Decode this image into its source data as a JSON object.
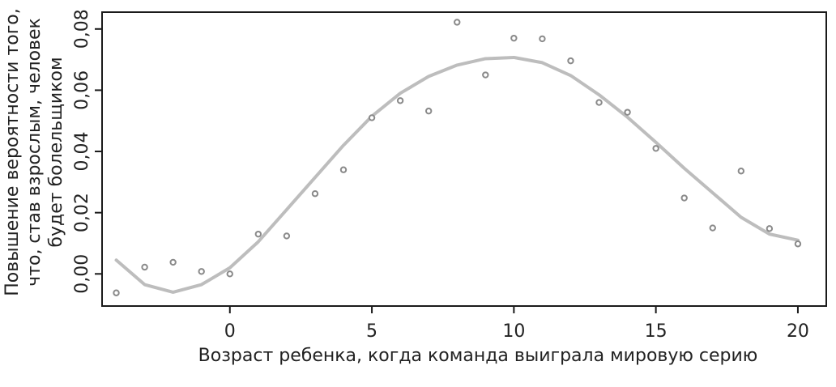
{
  "chart_data": {
    "type": "scatter",
    "title": "",
    "xlabel": "Возраст ребенка, когда команда выиграла мировую серию",
    "ylabel_lines": [
      "Повышение вероятности того,",
      "что, став взрослым, человек",
      "будет болельщиком"
    ],
    "xlim": [
      -4.5,
      21.0
    ],
    "ylim": [
      -0.0105,
      0.0855
    ],
    "xticks": [
      0,
      5,
      10,
      15,
      20
    ],
    "xtick_labels": [
      "0",
      "5",
      "10",
      "15",
      "20"
    ],
    "yticks": [
      0.0,
      0.02,
      0.04,
      0.06,
      0.08
    ],
    "ytick_labels": [
      "0,00",
      "0,02",
      "0,04",
      "0,06",
      "0,08"
    ],
    "grid": false,
    "series": [
      {
        "kind": "points",
        "color": "#8a8a8a",
        "x": [
          -4,
          -3,
          -2,
          -1,
          0,
          1,
          2,
          3,
          4,
          5,
          6,
          7,
          8,
          9,
          10,
          11,
          12,
          13,
          14,
          15,
          16,
          17,
          18,
          19,
          20
        ],
        "y": [
          -0.0062,
          0.0022,
          0.0038,
          0.0008,
          0.0,
          0.013,
          0.0124,
          0.0262,
          0.034,
          0.051,
          0.0566,
          0.0532,
          0.0822,
          0.065,
          0.077,
          0.0768,
          0.0696,
          0.056,
          0.0528,
          0.041,
          0.0248,
          0.015,
          0.0336,
          0.0148,
          0.0098
        ]
      },
      {
        "kind": "smooth-line",
        "color": "#bdbdbd",
        "x": [
          -4,
          -3,
          -2,
          -1,
          0,
          1,
          2,
          3,
          4,
          5,
          6,
          7,
          8,
          9,
          10,
          11,
          12,
          13,
          14,
          15,
          16,
          17,
          18,
          19,
          20
        ],
        "y": [
          0.0045,
          -0.0035,
          -0.006,
          -0.0035,
          0.002,
          0.0105,
          0.021,
          0.0315,
          0.042,
          0.0515,
          0.059,
          0.0645,
          0.0682,
          0.0703,
          0.0707,
          0.069,
          0.0648,
          0.0585,
          0.0512,
          0.043,
          0.0345,
          0.0265,
          0.0185,
          0.013,
          0.011
        ]
      }
    ]
  }
}
